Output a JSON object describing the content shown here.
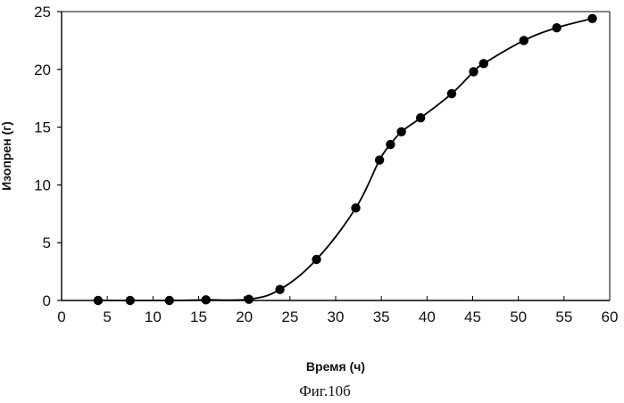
{
  "chart_data": {
    "type": "line",
    "xlabel": "Время (ч)",
    "ylabel": "Изопрен (г)",
    "xlim": [
      0,
      60
    ],
    "ylim": [
      0,
      25
    ],
    "xticks": [
      "0",
      "5",
      "10",
      "15",
      "20",
      "25",
      "30",
      "35",
      "40",
      "45",
      "50",
      "55",
      "60"
    ],
    "yticks": [
      "0",
      "5",
      "10",
      "15",
      "20",
      "25"
    ],
    "grid": false,
    "legend": "none",
    "markers": "filled circles",
    "line_color": "#000000",
    "x": [
      4,
      7.5,
      11.8,
      15.8,
      20.5,
      23.9,
      27.9,
      32.2,
      34.8,
      36,
      37.2,
      39.3,
      42.7,
      45.1,
      46.2,
      50.6,
      54.2,
      58.1
    ],
    "series": [
      {
        "values": [
          0,
          0,
          0,
          0.05,
          0.1,
          0.95,
          3.55,
          8,
          12.15,
          13.5,
          14.6,
          15.8,
          17.9,
          19.8,
          20.5,
          22.5,
          23.6,
          24.4
        ]
      }
    ]
  },
  "caption": "Фиг.10б"
}
